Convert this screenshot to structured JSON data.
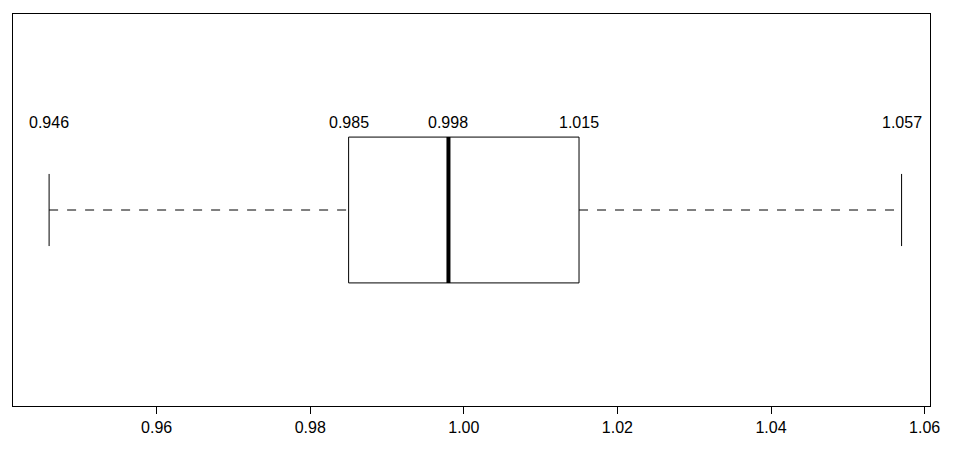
{
  "chart_data": {
    "type": "box",
    "orientation": "horizontal",
    "values": {
      "min": 0.946,
      "q1": 0.985,
      "median": 0.998,
      "q3": 1.015,
      "max": 1.057
    },
    "data_labels": true,
    "color": "#000000",
    "grid": false,
    "xlim": [
      0.9413,
      1.0607
    ],
    "xticks": [
      0.96,
      0.98,
      {
        "value": 1,
        "label": "1.00"
      },
      1.02,
      1.04,
      1.06
    ]
  }
}
